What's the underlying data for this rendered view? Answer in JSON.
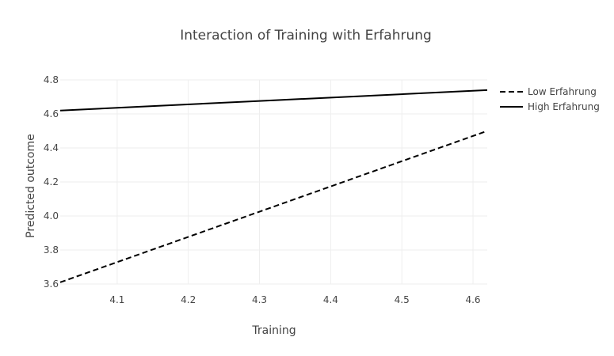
{
  "chart_data": {
    "type": "line",
    "title": "Interaction of Training with Erfahrung",
    "xlabel": "Training",
    "ylabel": "Predicted outcome",
    "xlim": [
      4.02,
      4.62
    ],
    "ylim": [
      3.6,
      4.8
    ],
    "xticks": [
      4.1,
      4.2,
      4.3,
      4.4,
      4.5,
      4.6
    ],
    "yticks": [
      3.6,
      3.8,
      4.0,
      4.2,
      4.4,
      4.6,
      4.8
    ],
    "xtick_labels": [
      "4.1",
      "4.2",
      "4.3",
      "4.4",
      "4.5",
      "4.6"
    ],
    "ytick_labels": [
      "3.6",
      "3.8",
      "4.0",
      "4.2",
      "4.4",
      "4.6",
      "4.8"
    ],
    "grid": true,
    "legend_position": "top-right",
    "series": [
      {
        "name": "Low Erfahrung",
        "dash": "dashed",
        "color": "#000000",
        "x": [
          4.02,
          4.62
        ],
        "y": [
          3.61,
          4.5
        ]
      },
      {
        "name": "High Erfahrung",
        "dash": "solid",
        "color": "#000000",
        "x": [
          4.02,
          4.62
        ],
        "y": [
          4.62,
          4.74
        ]
      }
    ]
  }
}
